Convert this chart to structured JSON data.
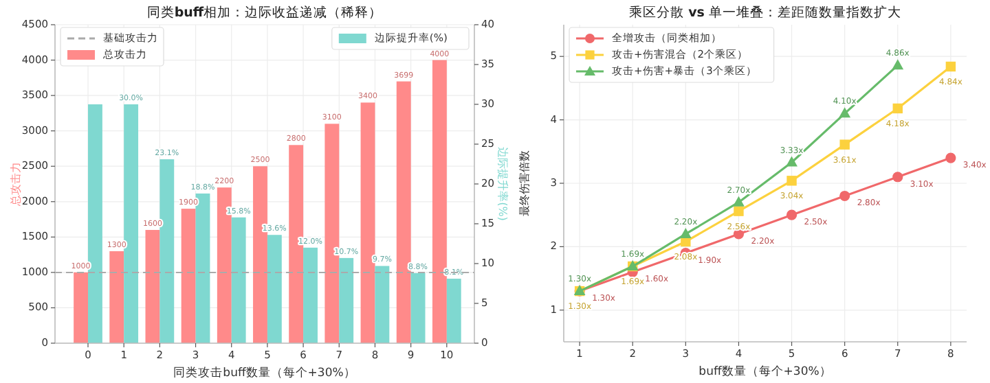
{
  "chart_data": [
    {
      "type": "bar",
      "title": "同类**buff**相加：边际收益递减（稀释）",
      "xlabel": "同类攻击buff数量（每个+30%）",
      "ylabel": "总攻击力",
      "y2label": "边际提升率(%)",
      "categories": [
        "0",
        "1",
        "2",
        "3",
        "4",
        "5",
        "6",
        "7",
        "8",
        "9",
        "10"
      ],
      "series": [
        {
          "name": "总攻击力",
          "color": "#ff8a8a",
          "values": [
            1000,
            1300,
            1600,
            1900,
            2200,
            2500,
            2800,
            3100,
            3400,
            3699,
            4000
          ],
          "value_labels": [
            "1000",
            "1300",
            "1600",
            "1900",
            "2200",
            "2500",
            "2800",
            "3100",
            "3400",
            "3699",
            "4000"
          ]
        },
        {
          "name": "边际提升率(%)",
          "color": "#7fd8d0",
          "axis": "y2",
          "values": [
            30,
            30,
            23.1,
            18.8,
            15.8,
            13.6,
            12.0,
            10.7,
            9.7,
            8.8,
            8.1
          ],
          "value_labels": [
            null,
            "30.0%",
            "23.1%",
            "18.8%",
            "15.8%",
            "13.6%",
            "12.0%",
            "10.7%",
            "9.7%",
            "8.8%",
            "8.1%"
          ]
        }
      ],
      "ylim": [
        0,
        4500
      ],
      "yticks": [
        0,
        500,
        1000,
        1500,
        2000,
        2500,
        3000,
        3500,
        4000,
        4500
      ],
      "y2lim": [
        0,
        40
      ],
      "y2ticks": [
        0,
        5,
        10,
        15,
        20,
        25,
        30,
        35,
        40
      ],
      "ref_lines": [
        {
          "axis": "y",
          "value": 1000,
          "label": "基础攻击力",
          "color": "#aaaaaa",
          "line_style": "dashed"
        }
      ],
      "grid": true,
      "legend": "top left"
    },
    {
      "type": "line",
      "title": "乘区分散 **vs** 单一堆叠：差距随数量指数扩大",
      "xlabel": "buff数量（每个+30%）",
      "ylabel": "最终伤害倍数",
      "x": [
        1,
        2,
        3,
        4,
        5,
        6,
        7,
        8
      ],
      "series": [
        {
          "name": "全增攻击（同类相加）",
          "color": "#f0686a",
          "marker": "circle",
          "values": [
            1.3,
            1.6,
            1.9,
            2.2,
            2.5,
            2.8,
            3.1,
            3.4
          ],
          "value_labels": [
            "1.30x",
            "1.60x",
            "1.90x",
            "2.20x",
            "2.50x",
            "2.80x",
            "3.10x",
            "3.40x"
          ]
        },
        {
          "name": "攻击+伤害混合（2个乘区）",
          "color": "#fcd13e",
          "marker": "square",
          "values": [
            1.3,
            1.69,
            2.08,
            2.56,
            3.04,
            3.61,
            4.18,
            4.84
          ],
          "value_labels": [
            "1.30x",
            "1.69x",
            "2.08x",
            "2.56x",
            "3.04x",
            "3.61x",
            "4.18x",
            "4.84x"
          ]
        },
        {
          "name": "攻击+伤害+暴击（3个乘区）",
          "color": "#66bb6a",
          "marker": "triangle",
          "values": [
            1.3,
            1.69,
            2.2,
            2.7,
            3.33,
            4.1,
            4.86,
            null
          ],
          "value_labels": [
            "1.30x",
            "1.69x",
            "2.20x",
            "2.70x",
            "3.33x",
            "4.10x",
            "4.86x",
            null
          ]
        }
      ],
      "xlim": [
        0.7,
        8.3
      ],
      "xticks": [
        1,
        2,
        3,
        4,
        5,
        6,
        7,
        8
      ],
      "ylim": [
        0.5,
        5.5
      ],
      "yticks": [
        1,
        2,
        3,
        4,
        5
      ],
      "grid": true,
      "legend": "top left"
    }
  ]
}
